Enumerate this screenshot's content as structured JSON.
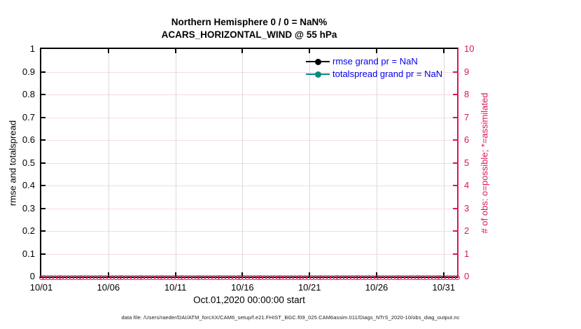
{
  "chart_data": {
    "type": "line",
    "title": "Northern Hemisphere 0 / 0 = NaN%",
    "subtitle": "ACARS_HORIZONTAL_WIND @ 55 hPa",
    "xlabel": "Oct.01,2020 00:00:00 start",
    "ylabel_left": "rmse and totalspread",
    "ylabel_right": "# of obs: o=possible; *=assimilated",
    "footer": "data file: /Users/raeder/DAI/ATM_forcXX/CAM6_setup/f.e21.FHIST_BGC.f09_025.CAM6assim.011/Diags_NTrS_2020-10/obs_diag_output.nc",
    "x_axis": {
      "tick_labels": [
        "10/01",
        "10/06",
        "10/11",
        "10/16",
        "10/21",
        "10/26",
        "10/31"
      ],
      "tick_days": [
        0,
        5,
        10,
        15,
        20,
        25,
        30
      ],
      "span_days": 31
    },
    "y_left": {
      "min": 0,
      "max": 1,
      "tick_labels": [
        "0",
        "0.1",
        "0.2",
        "0.3",
        "0.4",
        "0.5",
        "0.6",
        "0.7",
        "0.8",
        "0.9",
        "1"
      ],
      "color": "#000000"
    },
    "y_right": {
      "min": 0,
      "max": 10,
      "tick_labels": [
        "0",
        "1",
        "2",
        "3",
        "4",
        "5",
        "6",
        "7",
        "8",
        "9",
        "10"
      ],
      "color": "#DD1755"
    },
    "series": [
      {
        "name": "rmse",
        "legend_label": "rmse grand pr = NaN",
        "color": "#000000",
        "marker": "filled-circle",
        "values": []
      },
      {
        "name": "totalspread",
        "legend_label": "totalspread grand pr = NaN",
        "color": "#008C82",
        "marker": "filled-circle",
        "values": []
      }
    ],
    "obs_markers": {
      "description": "o=possible and *=assimilated observation counts, all zero",
      "value": 0,
      "count": 124,
      "color": "#DD1755"
    },
    "legend": {
      "position": "top-right-inside",
      "text_color": "#0000EE",
      "border": "none"
    },
    "grid": {
      "horizontal_color": "#F8DAE4",
      "vertical_color": "#DCD8DC",
      "visible": true
    }
  }
}
